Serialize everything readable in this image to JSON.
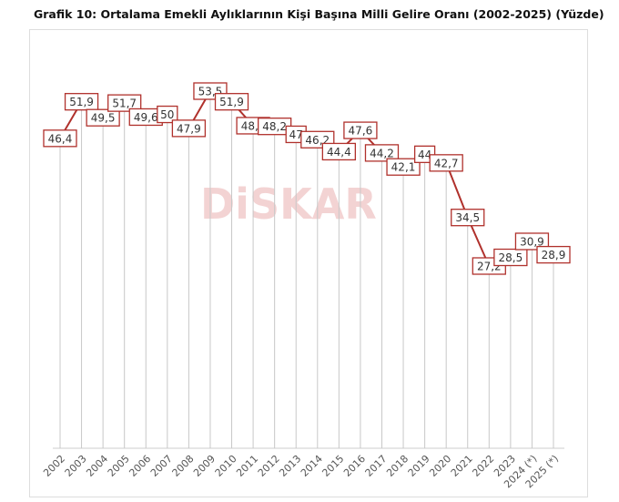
{
  "chart_data": {
    "type": "line",
    "title": "Grafik 10: Ortalama Emekli Aylıklarının Kişi Başına Milli Gelire Oranı (2002-2025) (Yüzde)",
    "categories": [
      "2002",
      "2003",
      "2004",
      "2005",
      "2006",
      "2007",
      "2008",
      "2009",
      "2010",
      "2011",
      "2012",
      "2013",
      "2014",
      "2015",
      "2016",
      "2017",
      "2018",
      "2019",
      "2020",
      "2021",
      "2022",
      "2023",
      "2024 (*)",
      "2025 (*)"
    ],
    "values": [
      46.4,
      51.9,
      49.5,
      51.7,
      49.6,
      50,
      47.9,
      53.5,
      51.9,
      48.3,
      48.2,
      47,
      46.2,
      44.4,
      47.6,
      44.2,
      42.1,
      44,
      42.7,
      34.5,
      27.2,
      28.5,
      30.9,
      28.9
    ],
    "labels": [
      "46,4",
      "51,9",
      "49,5",
      "51,7",
      "49,6",
      "50",
      "47,9",
      "53,5",
      "51,9",
      "48,3",
      "48,2",
      "47",
      "46,2",
      "44,4",
      "47,6",
      "44,2",
      "42,1",
      "44",
      "42,7",
      "34,5",
      "27,2",
      "28,5",
      "30,9",
      "28,9"
    ],
    "xlabel": "",
    "ylabel": "",
    "grid": false,
    "series_color": "#b0312c",
    "watermark": "DiSKAR"
  }
}
